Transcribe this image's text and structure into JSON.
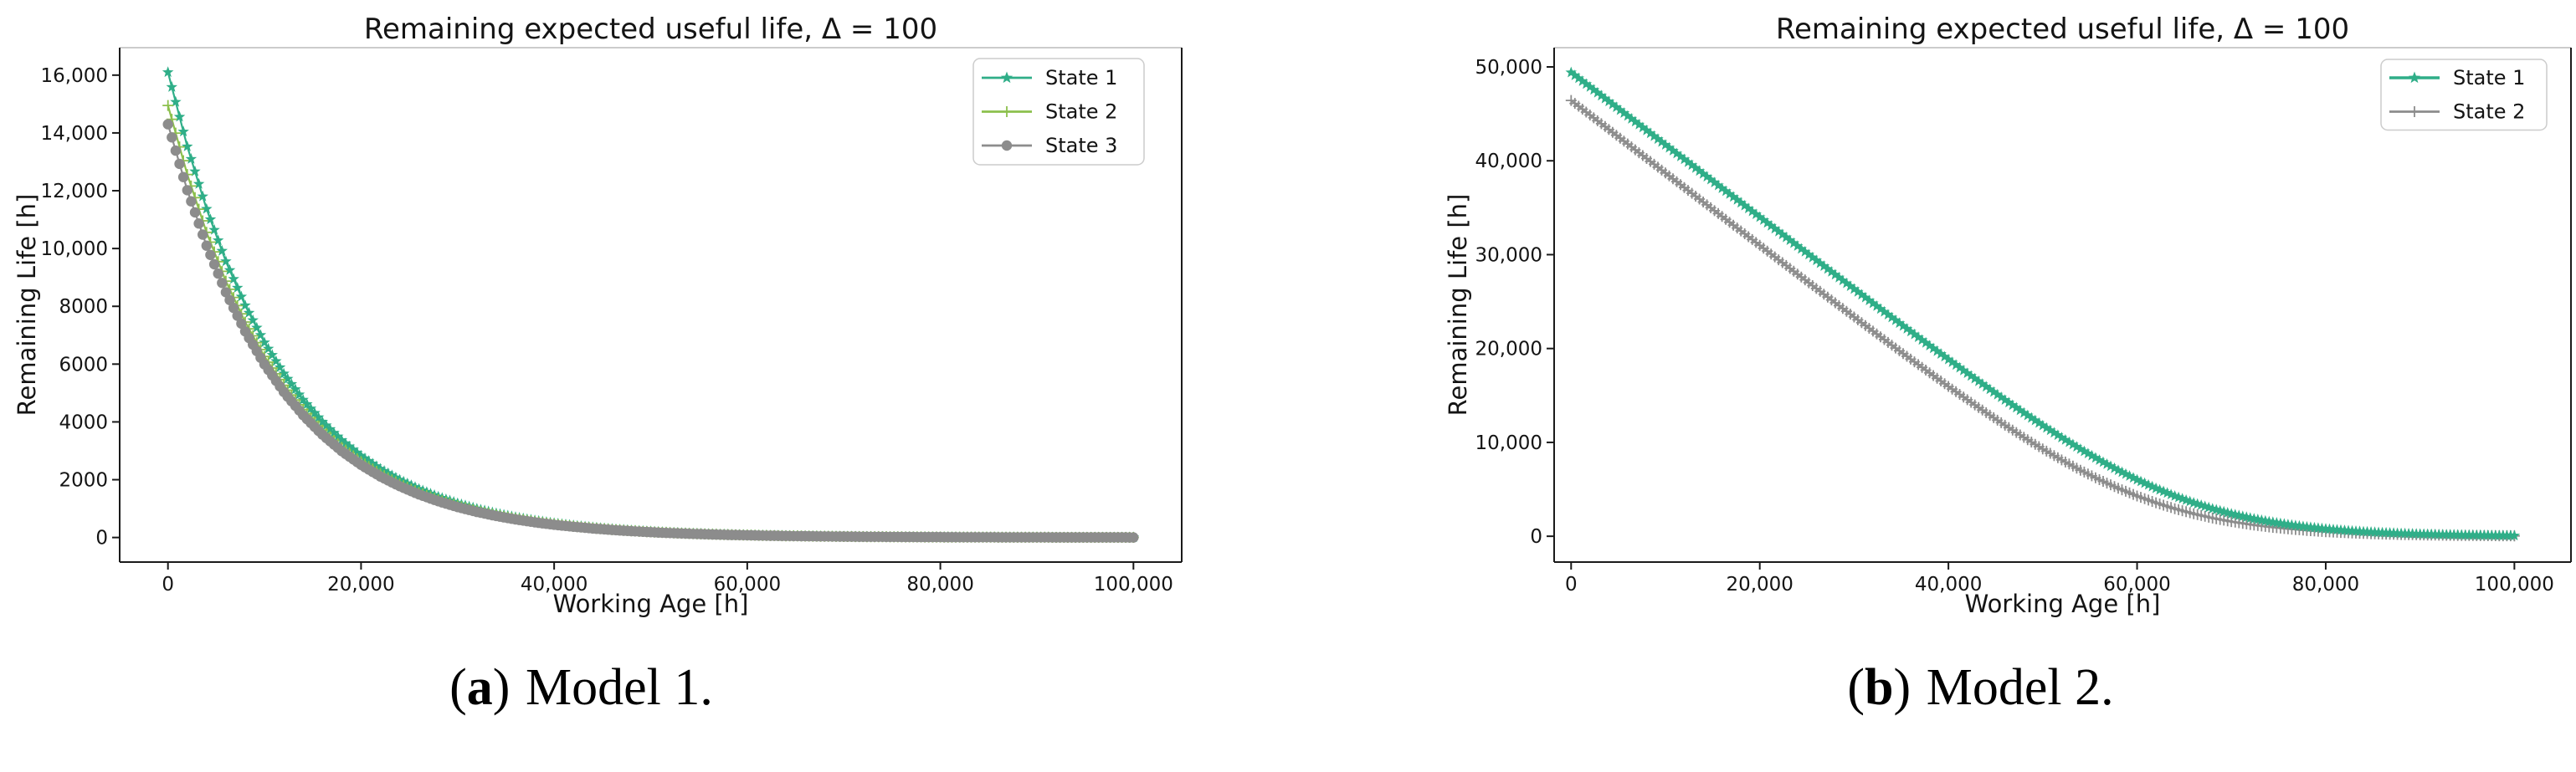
{
  "page": {
    "background": "#ffffff"
  },
  "chart_data": [
    {
      "type": "line",
      "id": "model1",
      "title": "Remaining expected useful life, Δ = 100",
      "xlabel": "Working Age [h]",
      "ylabel": "Remaining Life [h]",
      "xlim": [
        -5000,
        105000
      ],
      "ylim": [
        -850,
        16950
      ],
      "grid": false,
      "legend_position": "upper right",
      "axis_color": "#1a1a1a",
      "top_spine_color": "#cccccc",
      "marker_every_hours": 400,
      "x_tick_values": [
        0,
        20000,
        40000,
        60000,
        80000,
        100000
      ],
      "x_tick_labels": [
        "0",
        "20,000",
        "40,000",
        "60,000",
        "80,000",
        "100,000"
      ],
      "y_tick_values": [
        0,
        2000,
        4000,
        6000,
        8000,
        10000,
        12000,
        14000,
        16000
      ],
      "y_tick_labels": [
        "0",
        "2000",
        "4000",
        "6000",
        "8000",
        "10,000",
        "12,000",
        "14,000",
        "16,000"
      ],
      "x": [
        0,
        2000,
        4000,
        6000,
        8000,
        10000,
        12000,
        14000,
        16000,
        18000,
        20000,
        22000,
        24000,
        26000,
        28000,
        30000,
        32000,
        34000,
        36000,
        38000,
        40000,
        42000,
        44000,
        46000,
        48000,
        50000,
        52000,
        54000,
        56000,
        58000,
        60000,
        62000,
        64000,
        66000,
        68000,
        70000,
        72000,
        74000,
        76000,
        78000,
        80000,
        82000,
        84000,
        86000,
        88000,
        90000,
        92000,
        94000,
        96000,
        98000,
        100000
      ],
      "series": [
        {
          "name": "State 1",
          "color": "#2fae88",
          "marker": "star",
          "marker_size": 5.5,
          "line_width": 2.2,
          "y": [
            16100,
            13530,
            11370,
            9555,
            8030,
            6748,
            5671,
            4766,
            4005,
            3366,
            2828,
            2377,
            1997,
            1679,
            1411,
            1186,
            996,
            837,
            704,
            591,
            497,
            418,
            351,
            295,
            248,
            208,
            175,
            147,
            124,
            104,
            87,
            73,
            62,
            52,
            43,
            37,
            31,
            26,
            22,
            18,
            15,
            13,
            11,
            9,
            8,
            6,
            5,
            5,
            4,
            3,
            3
          ]
        },
        {
          "name": "State 2",
          "color": "#8cc04d",
          "marker": "plus",
          "marker_size": 5.5,
          "line_width": 2.2,
          "y": [
            14950,
            12563,
            10558,
            8873,
            7456,
            6266,
            5266,
            4425,
            3719,
            3125,
            2626,
            2207,
            1855,
            1559,
            1310,
            1101,
            925,
            777,
            653,
            549,
            461,
            388,
            326,
            274,
            230,
            193,
            162,
            137,
            115,
            96,
            81,
            68,
            57,
            48,
            40,
            34,
            29,
            24,
            20,
            17,
            14,
            12,
            10,
            8,
            7,
            6,
            5,
            4,
            4,
            3,
            3
          ]
        },
        {
          "name": "State 3",
          "color": "#8c8c8c",
          "marker": "circle",
          "marker_size": 6.2,
          "line_width": 2.2,
          "y": [
            14300,
            12017,
            10099,
            8487,
            7132,
            5993,
            5037,
            4233,
            3557,
            2989,
            2512,
            2111,
            1774,
            1491,
            1253,
            1053,
            885,
            744,
            625,
            525,
            441,
            371,
            312,
            262,
            220,
            185,
            155,
            131,
            110,
            92,
            78,
            65,
            55,
            46,
            39,
            32,
            27,
            23,
            19,
            16,
            14,
            11,
            10,
            8,
            7,
            6,
            5,
            4,
            3,
            3,
            2
          ]
        }
      ],
      "caption": {
        "paren_open": "(",
        "label": "a",
        "paren_close": ")",
        "text": "Model 1."
      }
    },
    {
      "type": "line",
      "id": "model2",
      "title": "Remaining expected useful life, Δ = 100",
      "xlabel": "Working Age [h]",
      "ylabel": "Remaining Life [h]",
      "xlim": [
        -1800,
        106000
      ],
      "ylim": [
        -2750,
        52050
      ],
      "grid": false,
      "legend_position": "upper right",
      "axis_color": "#1a1a1a",
      "top_spine_color": "#cccccc",
      "marker_every_hours": 400,
      "x_tick_values": [
        0,
        20000,
        40000,
        60000,
        80000,
        100000
      ],
      "x_tick_labels": [
        "0",
        "20,000",
        "40,000",
        "60,000",
        "80,000",
        "100,000"
      ],
      "y_tick_values": [
        0,
        10000,
        20000,
        30000,
        40000,
        50000
      ],
      "y_tick_labels": [
        "0",
        "10,000",
        "20,000",
        "30,000",
        "40,000",
        "50,000"
      ],
      "x": [
        0,
        2000,
        4000,
        6000,
        8000,
        10000,
        12000,
        14000,
        16000,
        18000,
        20000,
        22000,
        24000,
        26000,
        28000,
        30000,
        32000,
        34000,
        36000,
        38000,
        40000,
        42000,
        44000,
        46000,
        48000,
        50000,
        52000,
        54000,
        56000,
        58000,
        60000,
        62000,
        64000,
        66000,
        68000,
        70000,
        72000,
        74000,
        76000,
        78000,
        80000,
        82000,
        84000,
        86000,
        88000,
        90000,
        92000,
        94000,
        96000,
        98000,
        100000
      ],
      "series": [
        {
          "name": "State 1",
          "color": "#2fae88",
          "marker": "star",
          "marker_size": 5.5,
          "line_width": 3,
          "y": [
            49402,
            47859,
            46316,
            44773,
            43231,
            41689,
            40147,
            38606,
            37065,
            35526,
            33988,
            32451,
            30916,
            29384,
            27856,
            26331,
            24812,
            23300,
            21796,
            20303,
            18825,
            17364,
            15925,
            14513,
            13134,
            11796,
            10506,
            9274,
            8109,
            7020,
            6015,
            5100,
            4280,
            3556,
            2927,
            2389,
            1934,
            1556,
            1244,
            990,
            784,
            619,
            487,
            383,
            300,
            234,
            184,
            144,
            112,
            87,
            68
          ]
        },
        {
          "name": "State 2",
          "color": "#8c8c8c",
          "marker": "plus",
          "marker_size": 5.5,
          "line_width": 2.2,
          "y": [
            46428,
            44881,
            43336,
            41790,
            40244,
            38699,
            37155,
            35612,
            34070,
            32530,
            30992,
            29456,
            27923,
            26395,
            24872,
            23357,
            21849,
            20352,
            18871,
            17406,
            15963,
            14548,
            13166,
            11824,
            10532,
            9297,
            8129,
            7037,
            6030,
            5113,
            4291,
            3565,
            2935,
            2395,
            1939,
            1559,
            1247,
            992,
            786,
            620,
            488,
            384,
            301,
            235,
            184,
            144,
            112,
            87,
            68,
            53,
            42
          ]
        }
      ],
      "caption": {
        "paren_open": "(",
        "label": "b",
        "paren_close": ")",
        "text": "Model 2."
      }
    }
  ]
}
